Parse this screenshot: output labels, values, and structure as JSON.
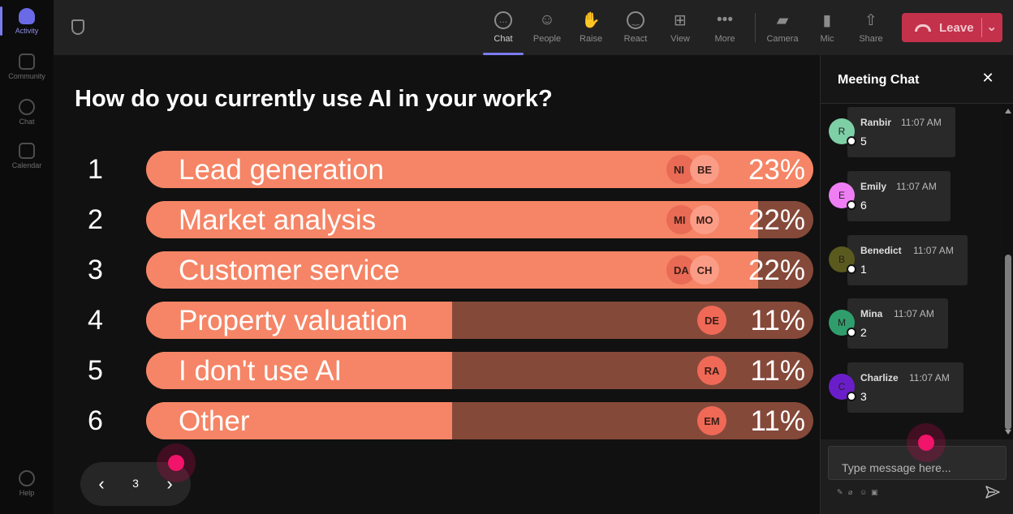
{
  "rail": {
    "items": [
      {
        "label": "Activity",
        "icon": "bell-icon",
        "active": true
      },
      {
        "label": "Community",
        "icon": "community-icon",
        "active": false
      },
      {
        "label": "Chat",
        "icon": "chat-icon",
        "active": false
      },
      {
        "label": "Calendar",
        "icon": "calendar-icon",
        "active": false
      }
    ],
    "help_label": "Help"
  },
  "toolbar": {
    "buttons": [
      {
        "label": "Chat",
        "icon": "chat-icon",
        "active": true
      },
      {
        "label": "People",
        "icon": "people-icon"
      },
      {
        "label": "Raise",
        "icon": "raise-hand-icon"
      },
      {
        "label": "React",
        "icon": "react-emoji-icon"
      },
      {
        "label": "View",
        "icon": "view-grid-icon"
      },
      {
        "label": "More",
        "icon": "more-icon"
      },
      {
        "label": "Camera",
        "icon": "camera-off-icon"
      },
      {
        "label": "Mic",
        "icon": "mic-icon"
      },
      {
        "label": "Share",
        "icon": "share-icon"
      }
    ],
    "leave_label": "Leave"
  },
  "poll": {
    "question": "How do you currently use AI in your work?",
    "options": [
      {
        "num": "1",
        "label": "Lead generation",
        "pct_label": "23%",
        "fraction": 0.23,
        "avatars": [
          "NI",
          "BE"
        ]
      },
      {
        "num": "2",
        "label": "Market analysis",
        "pct_label": "22%",
        "fraction": 0.22,
        "avatars": [
          "MI",
          "MO"
        ]
      },
      {
        "num": "3",
        "label": "Customer service",
        "pct_label": "22%",
        "fraction": 0.22,
        "avatars": [
          "DA",
          "CH"
        ]
      },
      {
        "num": "4",
        "label": "Property valuation",
        "pct_label": "11%",
        "fraction": 0.11,
        "avatars": [
          "DE"
        ]
      },
      {
        "num": "5",
        "label": "I don't use AI",
        "pct_label": "11%",
        "fraction": 0.11,
        "avatars": [
          "RA"
        ]
      },
      {
        "num": "6",
        "label": "Other",
        "pct_label": "11%",
        "fraction": 0.11,
        "avatars": [
          "EM"
        ]
      }
    ],
    "page": "3"
  },
  "chat": {
    "title": "Meeting Chat",
    "messages": [
      {
        "initial": "R",
        "name": "Ranbir",
        "time": "11:07 AM",
        "text": "5",
        "color": "#7ecfa6"
      },
      {
        "initial": "E",
        "name": "Emily",
        "time": "11:07 AM",
        "text": "6",
        "color": "#ef7ef5"
      },
      {
        "initial": "B",
        "name": "Benedict",
        "time": "11:07 AM",
        "text": "1",
        "color": "#5a5a1f"
      },
      {
        "initial": "M",
        "name": "Mina",
        "time": "11:07 AM",
        "text": "2",
        "color": "#2f9e6c"
      },
      {
        "initial": "C",
        "name": "Charlize",
        "time": "11:07 AM",
        "text": "3",
        "color": "#6a1ec9"
      }
    ],
    "input_placeholder": "Type message here..."
  },
  "colors": {
    "bar_fill": "#f58566",
    "bar_track": "#85493a",
    "leave": "#c4314b",
    "accent": "#7b7bf0"
  }
}
